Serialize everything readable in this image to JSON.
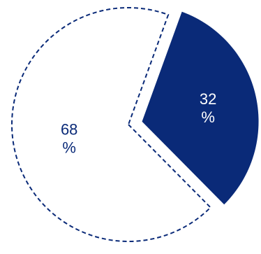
{
  "chart_data": {
    "type": "pie",
    "title": "",
    "slices": [
      {
        "value": 68,
        "label": "68",
        "unit": "%",
        "style": "dashed-outline"
      },
      {
        "value": 32,
        "label": "32",
        "unit": "%",
        "style": "filled"
      }
    ],
    "colors": {
      "filled": "#0a2a78",
      "outline": "#0a2a78",
      "background": "#ffffff",
      "label_on_filled": "#ffffff",
      "label_on_outline": "#0a2a78"
    },
    "exploded_slice": "32"
  }
}
